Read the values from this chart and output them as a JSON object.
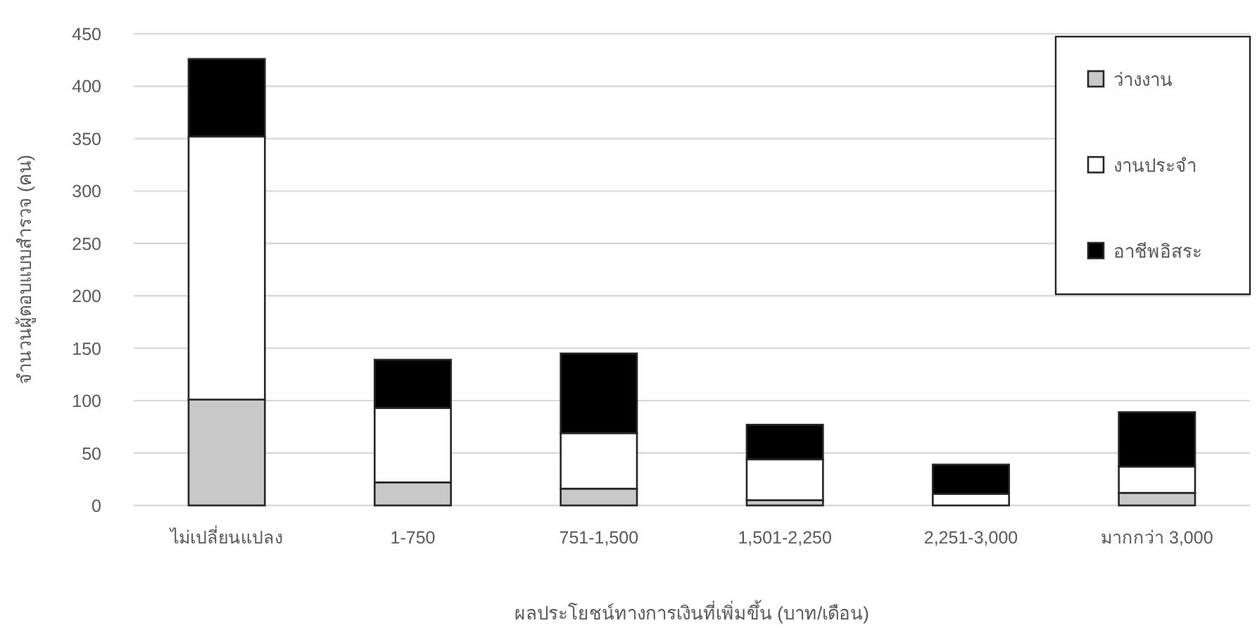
{
  "chart_data": {
    "type": "bar",
    "stacked": true,
    "xlabel": "ผลประโยชน์ทางการเงินที่เพิ่มขึ้น (บาท/เดือน)",
    "ylabel": "จำนวนผู้ตอบแบบสำรวจ (คน)",
    "categories": [
      "ไม่เปลี่ยนแปลง",
      "1-750",
      "751-1,500",
      "1,501-2,250",
      "2,251-3,000",
      "มากกว่า 3,000"
    ],
    "series": [
      {
        "name": "ว่างงาน",
        "color": "#c8c8c8",
        "values": [
          101,
          22,
          16,
          5,
          0,
          12
        ]
      },
      {
        "name": "งานประจำ",
        "color": "#ffffff",
        "values": [
          251,
          71,
          53,
          39,
          11,
          25
        ]
      },
      {
        "name": "อาชีพอิสระ",
        "color": "#000000",
        "values": [
          74,
          46,
          76,
          33,
          28,
          52
        ]
      }
    ],
    "ylim": [
      0,
      450
    ],
    "yticks": [
      0,
      50,
      100,
      150,
      200,
      250,
      300,
      350,
      400,
      450
    ],
    "grid": "y",
    "legend": "top right"
  }
}
